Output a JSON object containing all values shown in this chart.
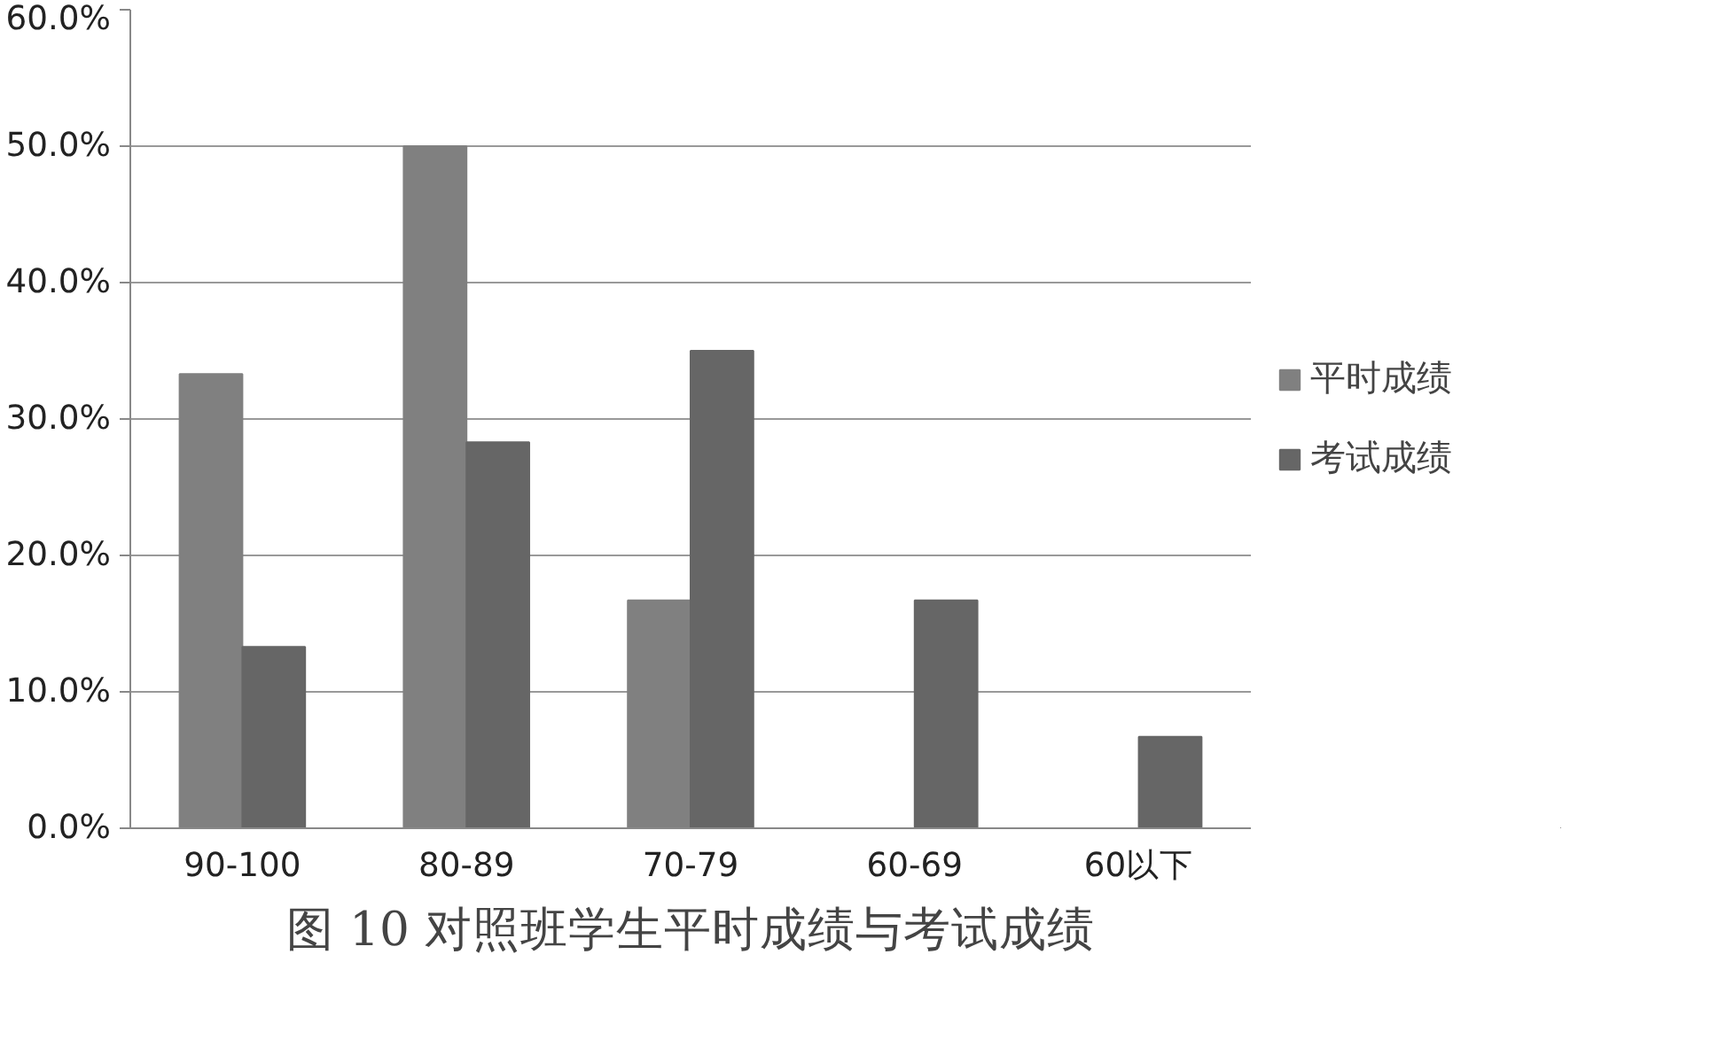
{
  "chart_data": {
    "type": "bar",
    "title": "图 10 对照班学生平时成绩与考试成绩",
    "categories": [
      "90-100",
      "80-89",
      "70-79",
      "60-69",
      "60以下"
    ],
    "series": [
      {
        "name": "平时成绩",
        "color": "#808080",
        "values": [
          33.3,
          50.0,
          16.7,
          0,
          0
        ]
      },
      {
        "name": "考试成绩",
        "color": "#666666",
        "values": [
          13.3,
          28.3,
          35.0,
          16.7,
          6.7
        ]
      }
    ],
    "ylim": [
      0,
      60
    ],
    "yticks": [
      {
        "value": 0,
        "label": "0.0%"
      },
      {
        "value": 10,
        "label": "10.0%"
      },
      {
        "value": 20,
        "label": "20.0%"
      },
      {
        "value": 30,
        "label": "30.0%"
      },
      {
        "value": 40,
        "label": "40.0%"
      },
      {
        "value": 50,
        "label": "50.0%"
      },
      {
        "value": 60,
        "label": "60.0%"
      }
    ],
    "grid": "y",
    "legend": "right"
  }
}
